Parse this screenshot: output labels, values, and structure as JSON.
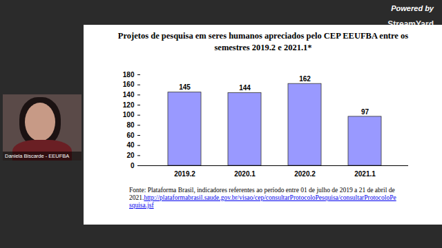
{
  "chart_data": {
    "type": "bar",
    "title": "Projetos de pesquisa em seres humanos apreciados pelo CEP EEUFBA entre os semestres 2019.2 e 2021.1*",
    "categories": [
      "2019.2",
      "2020.1",
      "2020.2",
      "2021.1"
    ],
    "values": [
      145,
      144,
      162,
      97
    ],
    "color": "#9999ff",
    "ylim": [
      0,
      180
    ],
    "yticks": [
      0,
      20,
      40,
      60,
      80,
      100,
      120,
      140,
      160,
      180
    ],
    "grid": false,
    "data_labels": true,
    "caption": "Fonte: Plataforma Brasil, indicadores referentes ao período entre 01 de julho de 2019 a 21 de abril de 2021.",
    "caption_link": "http://plataformabrasil.saude.gov.br/visao/cep/consultarProtocoloPesquisa/consultarProtocoloPesquisa.jsf",
    "annotations": [
      "Powered by",
      "StreamYard",
      "Daniela Biscarde - EEUFBA"
    ]
  }
}
